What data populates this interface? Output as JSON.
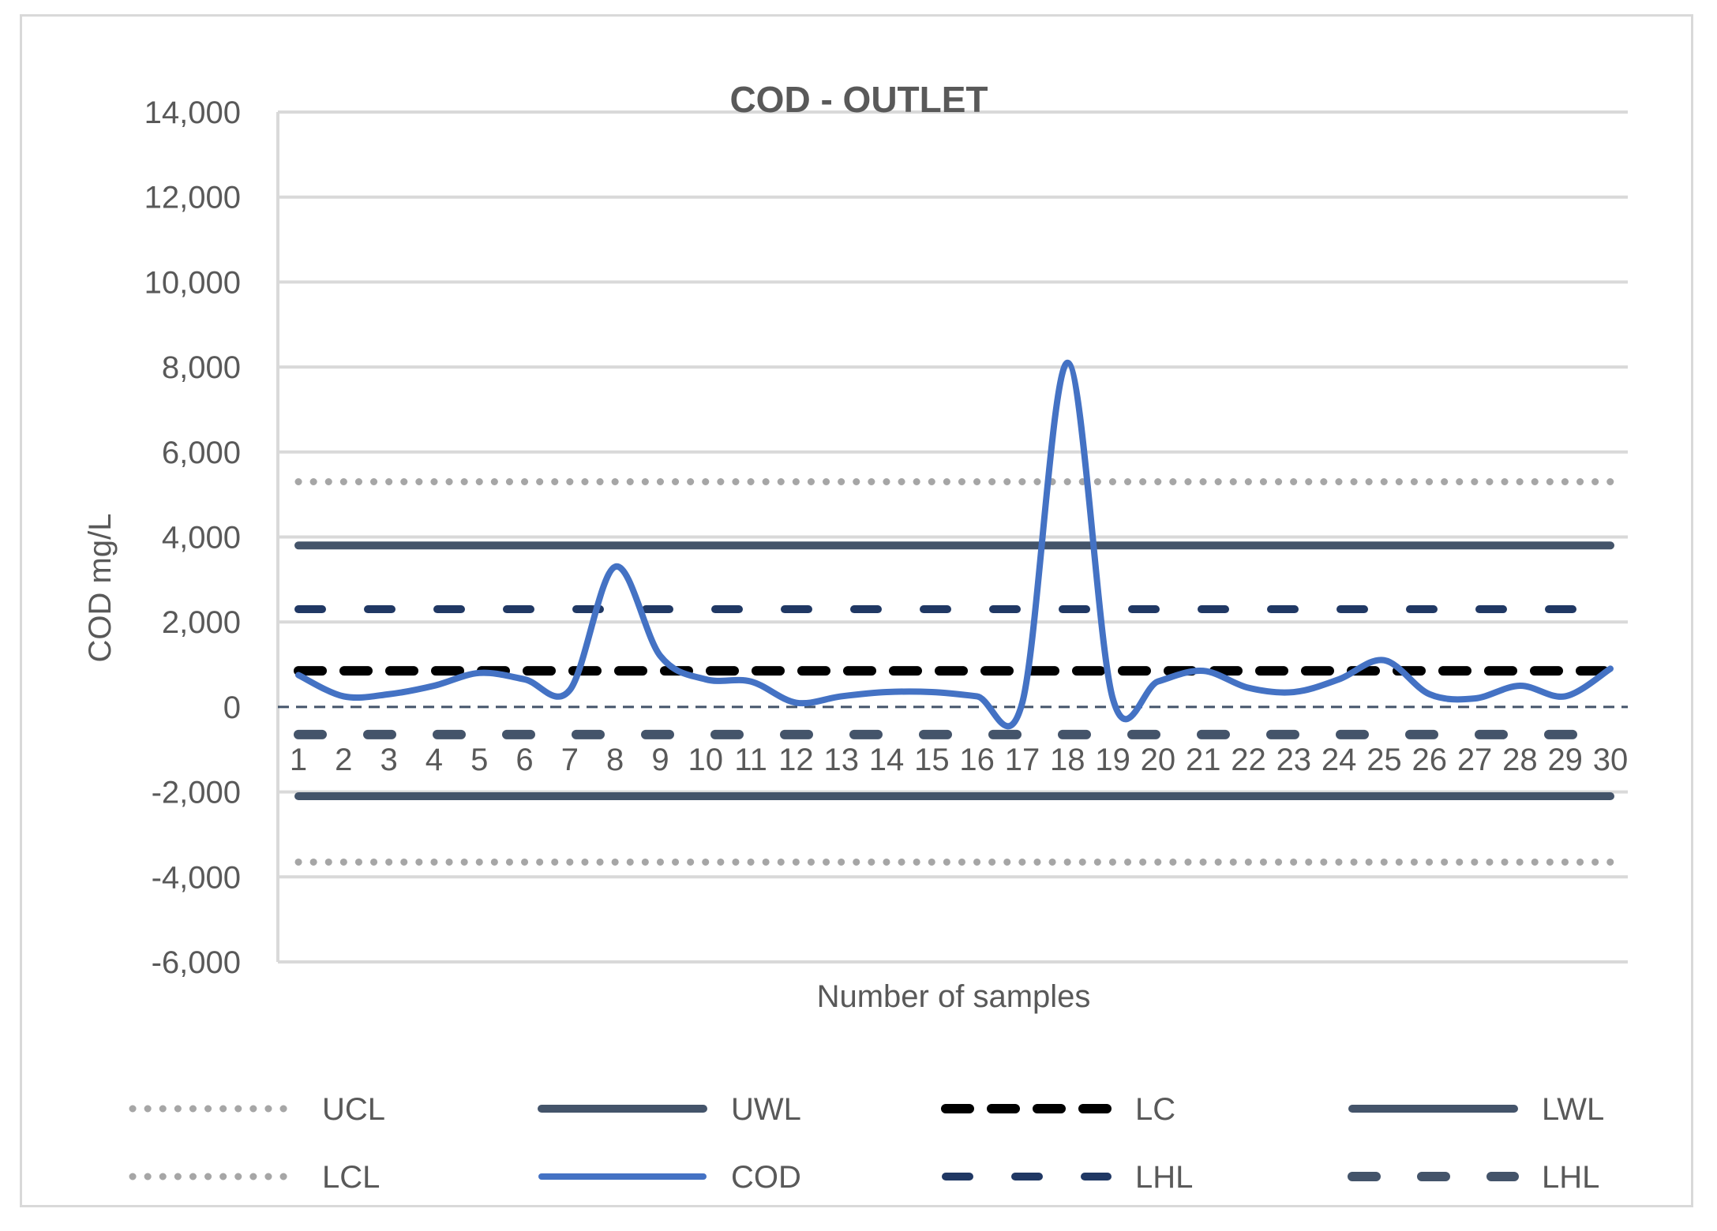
{
  "chart_data": {
    "type": "line",
    "title": "COD - OUTLET",
    "xlabel": "Number of samples",
    "ylabel": "COD mg/L",
    "ylim": [
      -6000,
      14000
    ],
    "y_ticks": [
      14000,
      12000,
      10000,
      8000,
      6000,
      4000,
      2000,
      0,
      -2000,
      -4000,
      -6000
    ],
    "y_tick_labels": [
      "14,000",
      "12,000",
      "10,000",
      "8,000",
      "6,000",
      "4,000",
      "2,000",
      "0",
      "-2,000",
      "-4,000",
      "-6,000"
    ],
    "categories": [
      "1",
      "2",
      "3",
      "4",
      "5",
      "6",
      "7",
      "8",
      "9",
      "10",
      "11",
      "12",
      "13",
      "14",
      "15",
      "16",
      "17",
      "18",
      "19",
      "20",
      "21",
      "22",
      "23",
      "24",
      "25",
      "26",
      "27",
      "28",
      "29",
      "30"
    ],
    "grid": true,
    "legend_position": "bottom",
    "series": [
      {
        "name": "UCL",
        "style": "dotted",
        "color": "#a6a6a6",
        "values": [
          5300,
          5300,
          5300,
          5300,
          5300,
          5300,
          5300,
          5300,
          5300,
          5300,
          5300,
          5300,
          5300,
          5300,
          5300,
          5300,
          5300,
          5300,
          5300,
          5300,
          5300,
          5300,
          5300,
          5300,
          5300,
          5300,
          5300,
          5300,
          5300,
          5300
        ]
      },
      {
        "name": "UWL",
        "style": "solid-thick",
        "color": "#44546a",
        "values": [
          3800,
          3800,
          3800,
          3800,
          3800,
          3800,
          3800,
          3800,
          3800,
          3800,
          3800,
          3800,
          3800,
          3800,
          3800,
          3800,
          3800,
          3800,
          3800,
          3800,
          3800,
          3800,
          3800,
          3800,
          3800,
          3800,
          3800,
          3800,
          3800,
          3800
        ]
      },
      {
        "name": "LC",
        "style": "dashed-black",
        "color": "#000000",
        "values": [
          850,
          850,
          850,
          850,
          850,
          850,
          850,
          850,
          850,
          850,
          850,
          850,
          850,
          850,
          850,
          850,
          850,
          850,
          850,
          850,
          850,
          850,
          850,
          850,
          850,
          850,
          850,
          850,
          850,
          850
        ]
      },
      {
        "name": "LWL",
        "style": "solid-thick",
        "color": "#44546a",
        "values": [
          -2100,
          -2100,
          -2100,
          -2100,
          -2100,
          -2100,
          -2100,
          -2100,
          -2100,
          -2100,
          -2100,
          -2100,
          -2100,
          -2100,
          -2100,
          -2100,
          -2100,
          -2100,
          -2100,
          -2100,
          -2100,
          -2100,
          -2100,
          -2100,
          -2100,
          -2100,
          -2100,
          -2100,
          -2100,
          -2100
        ]
      },
      {
        "name": "LCL",
        "style": "dotted",
        "color": "#a6a6a6",
        "values": [
          -3650,
          -3650,
          -3650,
          -3650,
          -3650,
          -3650,
          -3650,
          -3650,
          -3650,
          -3650,
          -3650,
          -3650,
          -3650,
          -3650,
          -3650,
          -3650,
          -3650,
          -3650,
          -3650,
          -3650,
          -3650,
          -3650,
          -3650,
          -3650,
          -3650,
          -3650,
          -3650,
          -3650,
          -3650,
          -3650
        ]
      },
      {
        "name": "COD",
        "style": "smooth",
        "color": "#4472c4",
        "values": [
          750,
          250,
          300,
          500,
          800,
          650,
          400,
          3300,
          1200,
          650,
          600,
          100,
          250,
          350,
          350,
          250,
          100,
          8100,
          200,
          600,
          850,
          450,
          350,
          650,
          1100,
          300,
          200,
          500,
          250,
          900
        ]
      },
      {
        "name": "LHL",
        "style": "dashed-navy",
        "color": "#203864",
        "values": [
          2300,
          2300,
          2300,
          2300,
          2300,
          2300,
          2300,
          2300,
          2300,
          2300,
          2300,
          2300,
          2300,
          2300,
          2300,
          2300,
          2300,
          2300,
          2300,
          2300,
          2300,
          2300,
          2300,
          2300,
          2300,
          2300,
          2300,
          2300,
          2300,
          2300
        ]
      },
      {
        "name": "LHL",
        "style": "dashed-slate",
        "color": "#44546a",
        "values": [
          -650,
          -650,
          -650,
          -650,
          -650,
          -650,
          -650,
          -650,
          -650,
          -650,
          -650,
          -650,
          -650,
          -650,
          -650,
          -650,
          -650,
          -650,
          -650,
          -650,
          -650,
          -650,
          -650,
          -650,
          -650,
          -650,
          -650,
          -650,
          -650,
          -650
        ]
      }
    ]
  }
}
